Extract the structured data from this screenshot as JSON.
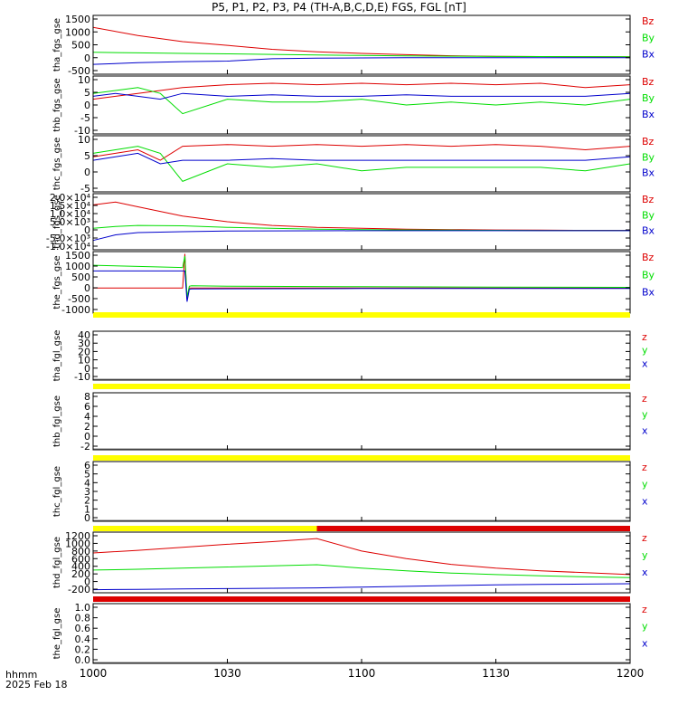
{
  "title": "P5, P1, P2, P3, P4 (TH-A,B,C,D,E) FGS, FGL [nT]",
  "colors": {
    "red": "#dd0000",
    "green": "#00dd00",
    "blue": "#0000cc",
    "yellow": "#ffff00",
    "black": "#000000"
  },
  "footer": {
    "time_label": "hhmm",
    "date_label": "2025 Feb 18"
  },
  "chart_data": [
    {
      "type": "line",
      "panel": "tha_fgs_gse",
      "ylabel": "tha_fgs_gse",
      "yticks": [
        "1500",
        "1000",
        "500",
        "0",
        "-500"
      ],
      "ylim": [
        -600,
        1600
      ],
      "legend": [
        "Bz",
        "By",
        "Bx"
      ],
      "series": [
        {
          "name": "Bz",
          "color": "red",
          "x": [
            0,
            10,
            20,
            30,
            40,
            50,
            60,
            70,
            80,
            90,
            100,
            110,
            120
          ],
          "values": [
            1150,
            850,
            620,
            480,
            330,
            240,
            180,
            130,
            90,
            70,
            60,
            55,
            50
          ]
        },
        {
          "name": "By",
          "color": "green",
          "x": [
            0,
            10,
            20,
            30,
            40,
            50,
            60,
            70,
            80,
            90,
            100,
            110,
            120
          ],
          "values": [
            220,
            200,
            180,
            160,
            140,
            120,
            100,
            85,
            75,
            65,
            60,
            55,
            50
          ]
        },
        {
          "name": "Bx",
          "color": "blue",
          "x": [
            0,
            10,
            20,
            30,
            40,
            50,
            60,
            70,
            80,
            90,
            100,
            110,
            120
          ],
          "values": [
            -230,
            -170,
            -130,
            -110,
            -20,
            0,
            10,
            15,
            20,
            20,
            20,
            20,
            20
          ]
        }
      ]
    },
    {
      "type": "line",
      "panel": "thb_fgs_gse",
      "ylabel": "thb_fgs_gse",
      "yticks": [
        "10",
        "5",
        "0",
        "-5",
        "-10"
      ],
      "ylim": [
        -10,
        10
      ],
      "legend": [
        "Bz",
        "By",
        "Bx"
      ],
      "series": [
        {
          "name": "Bz",
          "color": "red",
          "x": [
            0,
            5,
            10,
            15,
            20,
            30,
            40,
            50,
            60,
            70,
            80,
            90,
            100,
            110,
            120
          ],
          "values": [
            2,
            3,
            4,
            5,
            6,
            7,
            7.5,
            7,
            7.5,
            7,
            7.5,
            7,
            7.5,
            6,
            7
          ]
        },
        {
          "name": "By",
          "color": "green",
          "x": [
            0,
            5,
            10,
            15,
            20,
            30,
            40,
            50,
            60,
            70,
            80,
            90,
            100,
            110,
            120
          ],
          "values": [
            4,
            5,
            6,
            4,
            -3,
            2,
            1,
            1,
            2,
            0,
            1,
            0,
            1,
            0,
            2
          ]
        },
        {
          "name": "Bx",
          "color": "blue",
          "x": [
            0,
            5,
            10,
            15,
            20,
            30,
            40,
            50,
            60,
            70,
            80,
            90,
            100,
            110,
            120
          ],
          "values": [
            3,
            4,
            3,
            2,
            4,
            3,
            3.5,
            3,
            3,
            3.5,
            3,
            3,
            3,
            3,
            4
          ]
        }
      ]
    },
    {
      "type": "line",
      "panel": "thc_fgs_gse",
      "ylabel": "thc_fgs_gse",
      "yticks": [
        "10",
        "5",
        "0",
        "-5"
      ],
      "ylim": [
        -6,
        10
      ],
      "legend": [
        "Bz",
        "By",
        "Bx"
      ],
      "series": [
        {
          "name": "Bz",
          "color": "red",
          "x": [
            0,
            5,
            10,
            15,
            20,
            30,
            40,
            50,
            60,
            70,
            80,
            90,
            100,
            110,
            120
          ],
          "values": [
            4,
            5,
            6,
            3,
            7,
            7.5,
            7,
            7.5,
            7,
            7.5,
            7,
            7.5,
            7,
            6,
            7
          ]
        },
        {
          "name": "By",
          "color": "green",
          "x": [
            0,
            5,
            10,
            15,
            20,
            30,
            40,
            50,
            60,
            70,
            80,
            90,
            100,
            110,
            120
          ],
          "values": [
            5,
            6,
            7,
            5,
            -3,
            2,
            1,
            2,
            0,
            1,
            1,
            1,
            1,
            0,
            2
          ]
        },
        {
          "name": "Bx",
          "color": "blue",
          "x": [
            0,
            5,
            10,
            15,
            20,
            30,
            40,
            50,
            60,
            70,
            80,
            90,
            100,
            110,
            120
          ],
          "values": [
            3,
            4,
            5,
            2,
            3,
            3,
            3.5,
            3,
            3,
            3,
            3,
            3,
            3,
            3,
            4
          ]
        }
      ]
    },
    {
      "type": "line",
      "panel": "thd_fgs_gse",
      "ylabel": "thd_fgs_gse",
      "yticks": [
        "2.0×10⁴",
        "1.5×10⁴",
        "1.0×10⁴",
        "5.0×10³",
        "0",
        "-5.0×10³",
        "-1.0×10⁴"
      ],
      "ylim": [
        -10000,
        20000
      ],
      "legend": [
        "Bz",
        "By",
        "Bx"
      ],
      "series": [
        {
          "name": "Bz",
          "color": "red",
          "x": [
            0,
            5,
            10,
            20,
            30,
            40,
            50,
            60,
            70,
            80,
            90,
            100,
            110,
            120
          ],
          "values": [
            14000,
            15500,
            13000,
            8000,
            5000,
            3000,
            2000,
            1500,
            1000,
            800,
            600,
            500,
            400,
            400
          ]
        },
        {
          "name": "By",
          "color": "green",
          "x": [
            0,
            5,
            10,
            20,
            30,
            40,
            50,
            60,
            70,
            80,
            90,
            100,
            110,
            120
          ],
          "values": [
            1500,
            2500,
            3000,
            2800,
            2000,
            1500,
            1000,
            800,
            600,
            500,
            400,
            300,
            300,
            300
          ]
        },
        {
          "name": "Bx",
          "color": "blue",
          "x": [
            0,
            5,
            10,
            20,
            30,
            40,
            50,
            60,
            70,
            80,
            90,
            100,
            110,
            120
          ],
          "values": [
            -5000,
            -2000,
            -800,
            -300,
            0,
            100,
            150,
            200,
            200,
            200,
            200,
            200,
            200,
            200
          ]
        }
      ]
    },
    {
      "type": "line",
      "panel": "the_fgs_gse",
      "ylabel": "the_fgs_gse",
      "yticks": [
        "1500",
        "1000",
        "500",
        "0",
        "-500",
        "-1000"
      ],
      "ylim": [
        -1100,
        1600
      ],
      "legend": [
        "Bz",
        "By",
        "Bx"
      ],
      "series": [
        {
          "name": "Bz",
          "color": "red",
          "x": [
            0,
            10,
            20,
            20.5,
            21,
            21.5,
            22,
            30,
            60,
            90,
            120
          ],
          "values": [
            0,
            0,
            0,
            1500,
            -500,
            0,
            0,
            0,
            0,
            0,
            0
          ]
        },
        {
          "name": "By",
          "color": "green",
          "x": [
            0,
            10,
            20,
            20.5,
            21,
            21.5,
            22,
            30,
            60,
            90,
            120
          ],
          "values": [
            1000,
            950,
            900,
            1400,
            -400,
            80,
            100,
            80,
            60,
            40,
            30
          ]
        },
        {
          "name": "Bx",
          "color": "blue",
          "x": [
            0,
            10,
            20,
            20.5,
            21,
            21.5,
            22,
            30,
            60,
            90,
            120
          ],
          "values": [
            750,
            750,
            750,
            750,
            -600,
            -60,
            -40,
            -30,
            -20,
            -20,
            -20
          ]
        }
      ]
    },
    {
      "type": "line",
      "panel": "tha_fgl_gse",
      "ylabel": "tha_fgl_gse",
      "yticks": [
        "40",
        "30",
        "20",
        "10",
        "0",
        "-10"
      ],
      "ylim": [
        -12,
        42
      ],
      "legend": [
        "z",
        "y",
        "x"
      ],
      "status_bar": [
        {
          "from": 0,
          "to": 120,
          "color": "yellow"
        }
      ],
      "series": []
    },
    {
      "type": "line",
      "panel": "thb_fgl_gse",
      "ylabel": "thb_fgl_gse",
      "yticks": [
        "8",
        "6",
        "4",
        "2",
        "0",
        "-2"
      ],
      "ylim": [
        -3,
        9
      ],
      "legend": [
        "z",
        "y",
        "x"
      ],
      "status_bar": [
        {
          "from": 0,
          "to": 120,
          "color": "yellow"
        }
      ],
      "series": []
    },
    {
      "type": "line",
      "panel": "thc_fgl_gse",
      "ylabel": "thc_fgl_gse",
      "yticks": [
        "6",
        "5",
        "4",
        "3",
        "2",
        "1",
        "0"
      ],
      "ylim": [
        -0.7,
        6.3
      ],
      "legend": [
        "z",
        "y",
        "x"
      ],
      "status_bar": [
        {
          "from": 0,
          "to": 120,
          "color": "yellow"
        }
      ],
      "series": []
    },
    {
      "type": "line",
      "panel": "thd_fgl_gse",
      "ylabel": "thd_fgl_gse",
      "yticks": [
        "1200",
        "1000",
        "800",
        "600",
        "400",
        "200",
        "0",
        "-200"
      ],
      "ylim": [
        -300,
        1300
      ],
      "legend": [
        "z",
        "y",
        "x"
      ],
      "status_bar": [
        {
          "from": 0,
          "to": 50,
          "color": "yellow"
        },
        {
          "from": 50,
          "to": 120,
          "color": "red"
        }
      ],
      "series": [
        {
          "name": "z",
          "color": "red",
          "x": [
            0,
            10,
            20,
            30,
            40,
            50,
            60,
            70,
            80,
            90,
            100,
            110,
            120
          ],
          "values": [
            750,
            820,
            900,
            980,
            1050,
            1130,
            800,
            600,
            450,
            350,
            280,
            230,
            180
          ]
        },
        {
          "name": "y",
          "color": "green",
          "x": [
            0,
            10,
            20,
            30,
            40,
            50,
            60,
            70,
            80,
            90,
            100,
            110,
            120
          ],
          "values": [
            300,
            320,
            350,
            380,
            410,
            440,
            350,
            280,
            220,
            180,
            150,
            120,
            100
          ]
        },
        {
          "name": "x",
          "color": "blue",
          "x": [
            0,
            10,
            20,
            30,
            40,
            50,
            60,
            70,
            80,
            90,
            100,
            110,
            120
          ],
          "values": [
            -220,
            -210,
            -200,
            -190,
            -180,
            -170,
            -150,
            -130,
            -110,
            -90,
            -80,
            -70,
            -60
          ]
        }
      ]
    },
    {
      "type": "line",
      "panel": "the_fgl_gse",
      "ylabel": "the_fgl_gse",
      "yticks": [
        "1.0",
        "0.8",
        "0.6",
        "0.4",
        "0.2",
        "0.0"
      ],
      "ylim": [
        -0.05,
        1.1
      ],
      "legend": [
        "z",
        "y",
        "x"
      ],
      "status_bar": [
        {
          "from": 0,
          "to": 120,
          "color": "red"
        }
      ],
      "series": []
    }
  ],
  "xaxis": {
    "ticks": [
      "1000",
      "1030",
      "1100",
      "1130",
      "1200"
    ],
    "tick_minutes": [
      0,
      30,
      60,
      90,
      120
    ],
    "xlim": [
      0,
      120
    ]
  }
}
